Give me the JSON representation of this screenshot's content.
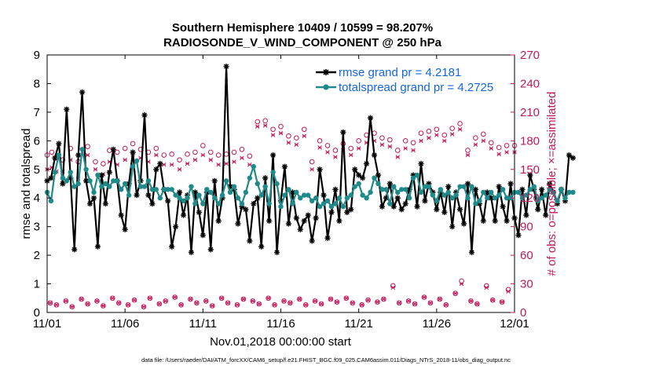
{
  "chart_data": {
    "type": "line",
    "title_line1": "Southern Hemisphere 10409 / 10599 = 98.207%",
    "title_line2": "RADIOSONDE_V_WIND_COMPONENT @ 250 hPa",
    "xlabel": "Nov.01,2018 00:00:00 start",
    "ylabel_left": "rmse and totalspread",
    "ylabel_right": "# of obs: o=possible; ×=assimilated",
    "x_tick_labels": [
      "11/01",
      "11/06",
      "11/11",
      "11/16",
      "11/21",
      "11/26",
      "12/01"
    ],
    "x_tick_days": [
      0,
      5,
      10,
      15,
      20,
      25,
      30
    ],
    "xlim": [
      0,
      30
    ],
    "ylim_left": [
      0,
      9
    ],
    "y_ticks_left": [
      "0",
      "1",
      "2",
      "3",
      "4",
      "5",
      "6",
      "7",
      "8",
      "9"
    ],
    "ylim_right": [
      0,
      270
    ],
    "y_ticks_right": [
      "0",
      "30",
      "60",
      "90",
      "120",
      "150",
      "180",
      "210",
      "240",
      "270"
    ],
    "legend_position": "top-right",
    "colors": {
      "rmse": "#000000",
      "spread": "#1f8a8a",
      "obs": "#c2185b",
      "legend_text": "#1565e0"
    },
    "series": [
      {
        "name": "rmse grand pr = 4.2181",
        "x_step_days": 0.25,
        "values": [
          4.6,
          4.7,
          5.4,
          5.9,
          4.5,
          7.1,
          4.7,
          2.2,
          5.5,
          7.7,
          4.6,
          3.8,
          4.0,
          2.3,
          4.8,
          3.8,
          4.9,
          5.7,
          4.6,
          3.4,
          2.9,
          4.5,
          5.6,
          4.1,
          4.6,
          6.9,
          4.1,
          3.8,
          5.0,
          5.2,
          4.3,
          3.9,
          2.3,
          3.0,
          4.2,
          3.4,
          4.1,
          2.1,
          4.2,
          3.5,
          2.7,
          4.2,
          2.2,
          4.6,
          3.2,
          4.0,
          8.6,
          4.4,
          4.3,
          3.1,
          3.7,
          3.6,
          2.5,
          3.8,
          4.0,
          2.3,
          4.7,
          3.2,
          5.5,
          2.1,
          3.9,
          5.1,
          3.1,
          4.2,
          3.3,
          2.9,
          3.2,
          3.4,
          2.5,
          3.3,
          5.0,
          4.1,
          2.6,
          3.5,
          4.3,
          3.2,
          6.3,
          3.5,
          3.6,
          5.0,
          4.8,
          4.7,
          5.2,
          6.8,
          5.5,
          4.8,
          3.7,
          4.0,
          4.5,
          3.7,
          4.0,
          3.6,
          3.8,
          4.3,
          4.8,
          3.7,
          5.2,
          3.9,
          4.5,
          4.2,
          3.6,
          4.2,
          3.5,
          4.4,
          3.0,
          4.2,
          3.6,
          3.1,
          4.5,
          2.1,
          4.3,
          3.8,
          3.2,
          4.2,
          4.0,
          3.2,
          4.4,
          3.7,
          3.2,
          4.5,
          3.3,
          2.7,
          4.3,
          3.4,
          4.8,
          4.3,
          3.6,
          4.3,
          3.4,
          4.5,
          4.2,
          3.8,
          4.3,
          3.9,
          5.5,
          5.4
        ],
        "color": "#000000"
      },
      {
        "name": "totalspread grand pr = 4.2725",
        "x_step_days": 0.25,
        "values": [
          4.2,
          3.9,
          4.9,
          5.5,
          4.7,
          4.6,
          4.9,
          4.4,
          4.5,
          5.7,
          5.0,
          4.6,
          4.2,
          4.8,
          4.4,
          4.5,
          4.4,
          4.6,
          4.6,
          4.3,
          4.5,
          4.1,
          5.1,
          5.3,
          4.4,
          4.4,
          4.6,
          4.3,
          4.3,
          4.0,
          4.3,
          4.3,
          4.3,
          4.1,
          4.0,
          3.9,
          4.0,
          4.4,
          3.8,
          4.1,
          3.8,
          4.3,
          4.2,
          4.0,
          3.8,
          4.1,
          4.6,
          4.2,
          4.4,
          4.0,
          3.8,
          4.2,
          4.7,
          5.1,
          4.5,
          4.1,
          4.4,
          3.8,
          4.9,
          4.5,
          3.7,
          4.1,
          4.3,
          3.8,
          4.2,
          4.0,
          4.1,
          4.1,
          3.9,
          4.0,
          3.7,
          3.8,
          3.9,
          3.7,
          3.8,
          4.0,
          3.7,
          4.0,
          4.1,
          4.4,
          4.5,
          4.1,
          4.0,
          4.2,
          4.7,
          4.5,
          4.3,
          4.3,
          3.8,
          4.4,
          4.2,
          4.3,
          4.3,
          4.0,
          4.7,
          4.8,
          4.2,
          4.4,
          4.4,
          4.1,
          3.9,
          4.3,
          4.1,
          4.2,
          4.0,
          4.1,
          4.4,
          4.4,
          4.0,
          4.4,
          3.8,
          3.9,
          4.2,
          4.0,
          4.2,
          4.0,
          4.1,
          4.3,
          4.0,
          4.0,
          4.2,
          4.2,
          4.0,
          4.1,
          4.3,
          4.4,
          3.9,
          4.0,
          4.1,
          4.3,
          4.2,
          3.9,
          4.3,
          4.0,
          4.2,
          4.2
        ],
        "color": "#1f8a8a"
      }
    ],
    "obs_possible": {
      "axis": "right",
      "high_days": [
        0.0,
        0.3,
        0.6,
        1.0,
        1.5,
        2.0,
        2.6,
        3.1,
        3.6,
        4.0,
        4.5,
        5.0,
        5.5,
        6.0,
        6.5,
        7.0,
        7.5,
        8.0,
        8.5,
        9.0,
        9.5,
        10.0,
        10.5,
        11.0,
        11.5,
        12.0,
        12.5,
        13.0,
        13.5,
        14.0,
        14.5,
        15.0,
        15.5,
        16.0,
        16.5,
        17.0,
        17.5,
        18.0,
        18.5,
        19.0,
        19.5,
        20.0,
        20.5,
        21.0,
        21.5,
        22.0,
        22.5,
        23.0,
        23.5,
        24.0,
        24.5,
        25.0,
        25.5,
        26.0,
        26.5,
        27.0,
        27.5,
        28.0,
        28.5,
        29.0,
        29.5,
        30.0
      ],
      "high_counts": [
        165,
        168,
        162,
        160,
        172,
        158,
        174,
        158,
        156,
        170,
        168,
        172,
        177,
        171,
        168,
        172,
        165,
        166,
        160,
        166,
        168,
        175,
        168,
        165,
        166,
        168,
        171,
        164,
        200,
        201,
        192,
        195,
        185,
        183,
        192,
        158,
        180,
        175,
        170,
        177,
        172,
        180,
        186,
        188,
        183,
        181,
        170,
        180,
        178,
        188,
        190,
        192,
        186,
        193,
        198,
        170,
        183,
        187,
        178,
        173,
        175,
        175
      ],
      "low_days": [
        0.2,
        0.6,
        1.2,
        1.6,
        2.2,
        2.6,
        3.2,
        3.6,
        4.2,
        4.6,
        5.2,
        5.6,
        6.2,
        6.6,
        7.2,
        7.6,
        8.2,
        8.6,
        9.2,
        9.6,
        10.2,
        10.6,
        11.2,
        11.6,
        12.2,
        12.6,
        13.2,
        13.6,
        14.2,
        14.6,
        15.2,
        15.6,
        16.2,
        16.6,
        17.2,
        17.6,
        18.2,
        18.6,
        19.2,
        19.6,
        20.2,
        20.6,
        21.2,
        21.6,
        22.2,
        22.6,
        23.2,
        23.6,
        24.2,
        24.6,
        25.2,
        25.6,
        26.2,
        26.6,
        27.2,
        27.6,
        28.2,
        28.6,
        29.2,
        29.6
      ],
      "low_counts": [
        10,
        8,
        12,
        6,
        14,
        9,
        12,
        7,
        15,
        10,
        8,
        13,
        6,
        15,
        9,
        12,
        16,
        8,
        14,
        10,
        12,
        7,
        15,
        10,
        8,
        14,
        12,
        9,
        15,
        8,
        12,
        10,
        14,
        8,
        12,
        9,
        14,
        11,
        15,
        10,
        8,
        13,
        11,
        14,
        28,
        10,
        12,
        9,
        16,
        10,
        14,
        8,
        20,
        33,
        12,
        9,
        28,
        13,
        11,
        24
      ],
      "marker": "o"
    },
    "obs_assimilated": {
      "axis": "right",
      "high_days": [
        0.0,
        0.3,
        0.6,
        1.0,
        1.5,
        2.0,
        2.6,
        3.1,
        3.6,
        4.0,
        4.5,
        5.0,
        5.5,
        6.0,
        6.5,
        7.0,
        7.5,
        8.0,
        8.5,
        9.0,
        9.5,
        10.0,
        10.5,
        11.0,
        11.5,
        12.0,
        12.5,
        13.0,
        13.5,
        14.0,
        14.5,
        15.0,
        15.5,
        16.0,
        16.5,
        17.0,
        17.5,
        18.0,
        18.5,
        19.0,
        19.5,
        20.0,
        20.5,
        21.0,
        21.5,
        22.0,
        22.5,
        23.0,
        23.5,
        24.0,
        24.5,
        25.0,
        25.5,
        26.0,
        26.5,
        27.0,
        27.5,
        28.0,
        28.5,
        29.0,
        29.5,
        30.0
      ],
      "high_counts": [
        150,
        152,
        148,
        148,
        160,
        140,
        165,
        150,
        145,
        158,
        155,
        160,
        166,
        162,
        158,
        165,
        155,
        155,
        150,
        156,
        160,
        165,
        160,
        155,
        156,
        158,
        162,
        155,
        195,
        196,
        186,
        188,
        178,
        176,
        185,
        150,
        173,
        168,
        163,
        170,
        165,
        172,
        178,
        180,
        176,
        174,
        163,
        172,
        170,
        180,
        183,
        186,
        180,
        187,
        192,
        165,
        176,
        180,
        172,
        166,
        168,
        168
      ],
      "low_days": [
        0.2,
        0.6,
        1.2,
        1.6,
        2.2,
        2.6,
        3.2,
        3.6,
        4.2,
        4.6,
        5.2,
        5.6,
        6.2,
        6.6,
        7.2,
        7.6,
        8.2,
        8.6,
        9.2,
        9.6,
        10.2,
        10.6,
        11.2,
        11.6,
        12.2,
        12.6,
        13.2,
        13.6,
        14.2,
        14.6,
        15.2,
        15.6,
        16.2,
        16.6,
        17.2,
        17.6,
        18.2,
        18.6,
        19.2,
        19.6,
        20.2,
        20.6,
        21.2,
        21.6,
        22.2,
        22.6,
        23.2,
        23.6,
        24.2,
        24.6,
        25.2,
        25.6,
        26.2,
        26.6,
        27.2,
        27.6,
        28.2,
        28.6,
        29.2,
        29.6
      ],
      "low_counts": [
        10,
        8,
        12,
        6,
        14,
        9,
        12,
        7,
        15,
        10,
        8,
        13,
        6,
        15,
        9,
        12,
        16,
        8,
        14,
        10,
        12,
        7,
        15,
        10,
        8,
        14,
        12,
        9,
        15,
        8,
        12,
        10,
        14,
        8,
        12,
        9,
        14,
        11,
        15,
        10,
        8,
        13,
        11,
        14,
        26,
        10,
        12,
        9,
        16,
        10,
        14,
        8,
        20,
        30,
        12,
        9,
        26,
        13,
        11,
        22
      ],
      "marker": "x"
    },
    "footnote": "data file: /Users/raeder/DAI/ATM_forcXX/CAM6_setup/f.e21.FHIST_BGC.f09_025.CAM6assim.011/Diags_NTrS_2018-11/obs_diag_output.nc"
  }
}
